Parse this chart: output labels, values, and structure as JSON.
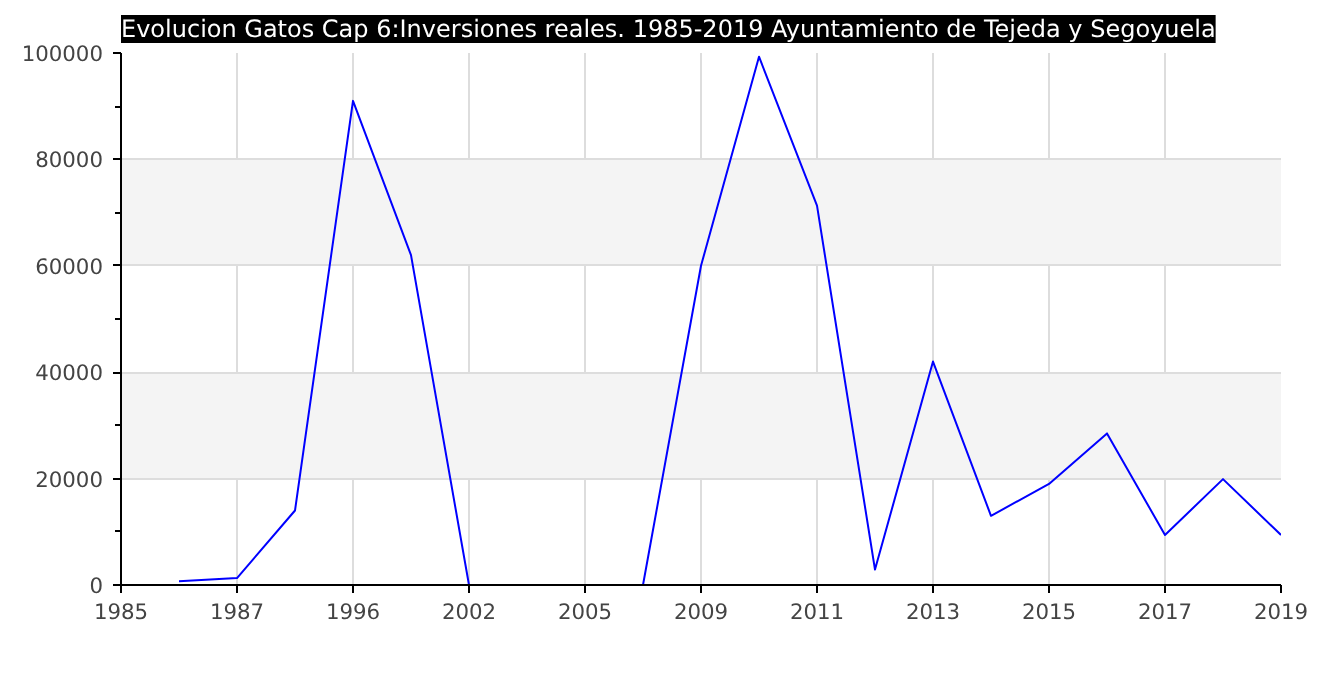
{
  "chart_data": {
    "type": "line",
    "title": "Evolucion Gatos Cap 6:Inversiones reales. 1985-2019 Ayuntamiento de Tejeda y Segoyuela",
    "categories": [
      "1985",
      null,
      "1987",
      null,
      "1996",
      null,
      "2002",
      null,
      "2005",
      null,
      "2009",
      null,
      "2011",
      null,
      "2013",
      null,
      "2015",
      null,
      "2017",
      null,
      "2019"
    ],
    "series": [
      {
        "color": "#0000ff",
        "values": [
          null,
          700,
          1300,
          14000,
          91000,
          62000,
          0,
          0,
          0,
          0,
          60000,
          99300,
          71300,
          2900,
          42000,
          13000,
          19000,
          28500,
          9400,
          19900,
          9400
        ]
      }
    ],
    "ylim": [
      0,
      100000
    ],
    "yticks": [
      0,
      20000,
      40000,
      60000,
      80000,
      100000
    ],
    "grid": true,
    "marker": "none",
    "line_style": "solid"
  }
}
